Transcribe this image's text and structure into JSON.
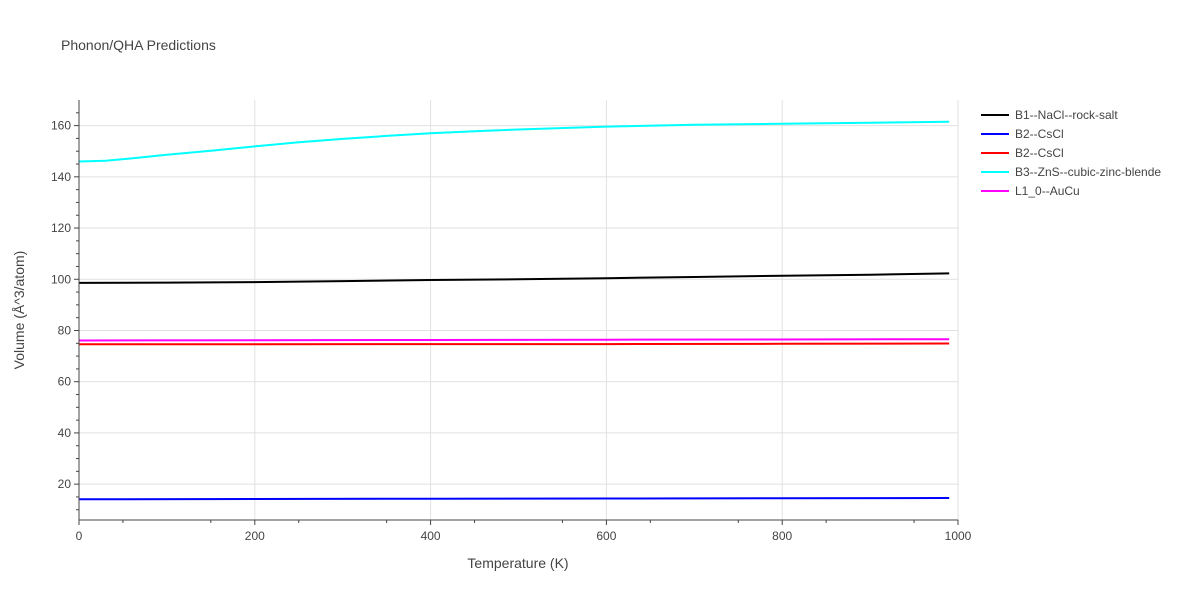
{
  "chart_data": {
    "type": "line",
    "title": "Phonon/QHA Predictions",
    "xlabel": "Temperature (K)",
    "ylabel": "Volume (Å^3/atom)",
    "xlim": [
      0,
      1000
    ],
    "ylim": [
      6,
      170
    ],
    "x_ticks": [
      0,
      200,
      400,
      600,
      800,
      1000
    ],
    "y_ticks": [
      20,
      40,
      60,
      80,
      100,
      120,
      140,
      160
    ],
    "grid": true,
    "legend_position": "right",
    "series": [
      {
        "name": "B1--NaCl--rock-salt",
        "color": "#000000",
        "x": [
          0,
          100,
          200,
          300,
          400,
          500,
          600,
          700,
          800,
          900,
          990
        ],
        "y": [
          98.6,
          98.7,
          98.9,
          99.3,
          99.7,
          100.0,
          100.4,
          100.9,
          101.4,
          101.8,
          102.3
        ]
      },
      {
        "name": "B2--CsCl",
        "color": "#0000ff",
        "x": [
          0,
          200,
          400,
          600,
          800,
          990
        ],
        "y": [
          14.1,
          14.2,
          14.3,
          14.4,
          14.5,
          14.6
        ]
      },
      {
        "name": "B2--CsCl",
        "color": "#ff0000",
        "x": [
          0,
          200,
          400,
          600,
          800,
          990
        ],
        "y": [
          74.6,
          74.6,
          74.7,
          74.7,
          74.8,
          74.9
        ]
      },
      {
        "name": "B3--ZnS--cubic-zinc-blende",
        "color": "#00ffff",
        "x": [
          0,
          30,
          60,
          100,
          150,
          200,
          250,
          300,
          350,
          400,
          450,
          500,
          600,
          700,
          800,
          900,
          990
        ],
        "y": [
          146.0,
          146.3,
          147.2,
          148.6,
          150.2,
          151.9,
          153.5,
          154.8,
          156.0,
          157.0,
          157.8,
          158.5,
          159.6,
          160.3,
          160.7,
          161.1,
          161.5
        ]
      },
      {
        "name": "L1_0--AuCu",
        "color": "#ff00ff",
        "x": [
          0,
          200,
          400,
          600,
          800,
          990
        ],
        "y": [
          76.1,
          76.2,
          76.3,
          76.4,
          76.5,
          76.6
        ]
      }
    ]
  }
}
